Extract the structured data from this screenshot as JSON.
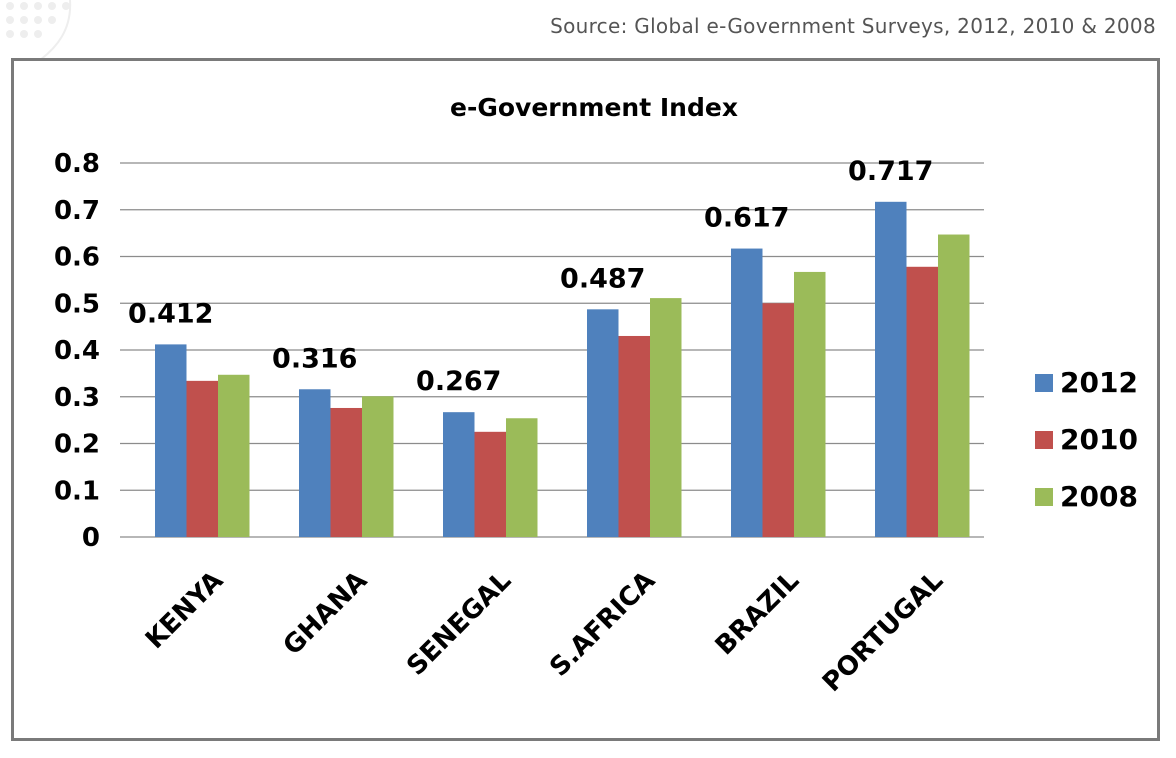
{
  "source_text": "Source: Global e-Government Surveys, 2012, 2010  & 2008",
  "chart_data": {
    "type": "bar",
    "title": "e-Government Index",
    "categories": [
      "KENYA",
      "GHANA",
      "SENEGAL",
      "S.AFRICA",
      "BRAZIL",
      "PORTUGAL"
    ],
    "series": [
      {
        "name": "2012",
        "color": "#4f81bd",
        "values": [
          0.412,
          0.316,
          0.267,
          0.487,
          0.617,
          0.717
        ]
      },
      {
        "name": "2010",
        "color": "#c0504d",
        "values": [
          0.334,
          0.276,
          0.225,
          0.43,
          0.5,
          0.578
        ]
      },
      {
        "name": "2008",
        "color": "#9bbb59",
        "values": [
          0.347,
          0.301,
          0.254,
          0.511,
          0.567,
          0.647
        ]
      }
    ],
    "data_labels": [
      "0.412",
      "0.316",
      "0.267",
      "0.487",
      "0.617",
      "0.717"
    ],
    "y_ticks": [
      "0",
      "0.1",
      "0.2",
      "0.3",
      "0.4",
      "0.5",
      "0.6",
      "0.7",
      "0.8"
    ],
    "ylim": [
      0,
      0.8
    ],
    "grid": true,
    "legend_position": "right"
  }
}
